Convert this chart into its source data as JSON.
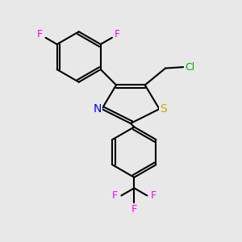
{
  "background_color": "#e8e8e8",
  "bond_color": "#000000",
  "bond_width": 1.5,
  "atom_colors": {
    "F": "#ff00ff",
    "Cl": "#00aa00",
    "S": "#ccaa00",
    "N": "#0000ff"
  },
  "font_size": 9,
  "fig_width": 3.0,
  "fig_height": 3.0,
  "dpi": 100
}
